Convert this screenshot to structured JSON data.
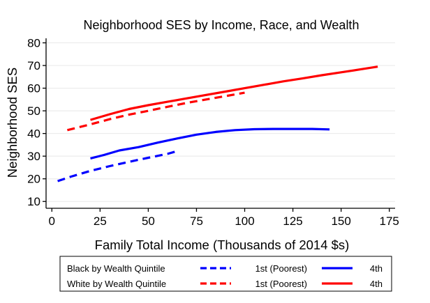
{
  "chart_data": {
    "type": "line",
    "title": "Neighborhood SES by Income, Race, and Wealth",
    "xlabel": "Family Total Income (Thousands of 2014 $s)",
    "ylabel": "Neighborhood SES",
    "xlim": [
      -3,
      178
    ],
    "ylim": [
      7,
      82
    ],
    "xticks": [
      0,
      25,
      50,
      75,
      100,
      125,
      150,
      175
    ],
    "yticks": [
      10,
      20,
      30,
      40,
      50,
      60,
      70,
      80
    ],
    "grid": true,
    "legend": {
      "rows": [
        {
          "label": "Black by Wealth Quintile",
          "series": [
            "black-1st",
            "black-4th"
          ]
        },
        {
          "label": "White by Wealth Quintile",
          "series": [
            "white-1st",
            "white-4th"
          ]
        }
      ]
    },
    "series": [
      {
        "id": "black-1st",
        "name": "1st (Poorest)",
        "color": "#0000ff",
        "style": "dashed",
        "x": [
          3,
          10,
          20,
          30,
          40,
          50,
          60,
          64
        ],
        "y": [
          19,
          21,
          23.5,
          25.6,
          27.5,
          29.3,
          31,
          32
        ]
      },
      {
        "id": "black-4th",
        "name": "4th",
        "color": "#0000ff",
        "style": "solid",
        "x": [
          20,
          27,
          35,
          45,
          55,
          65,
          75,
          85,
          95,
          105,
          115,
          125,
          135,
          144
        ],
        "y": [
          29,
          30.5,
          32.5,
          34,
          36,
          37.8,
          39.5,
          40.7,
          41.5,
          41.9,
          42,
          42,
          42,
          41.8
        ]
      },
      {
        "id": "white-1st",
        "name": "1st (Poorest)",
        "color": "#ff0000",
        "style": "dashed",
        "x": [
          8,
          20,
          30,
          40,
          50,
          60,
          70,
          80,
          90,
          100
        ],
        "y": [
          41.5,
          44,
          46.3,
          48.3,
          50,
          51.8,
          53.5,
          55,
          56.5,
          58
        ]
      },
      {
        "id": "white-4th",
        "name": "4th",
        "color": "#ff0000",
        "style": "solid",
        "x": [
          20,
          30,
          40,
          50,
          60,
          70,
          80,
          90,
          100,
          110,
          120,
          130,
          140,
          150,
          160,
          169
        ],
        "y": [
          46,
          48.5,
          50.8,
          52.5,
          54,
          55.5,
          57,
          58.5,
          60,
          61.5,
          63,
          64.3,
          65.7,
          67,
          68.3,
          69.5
        ]
      }
    ]
  }
}
